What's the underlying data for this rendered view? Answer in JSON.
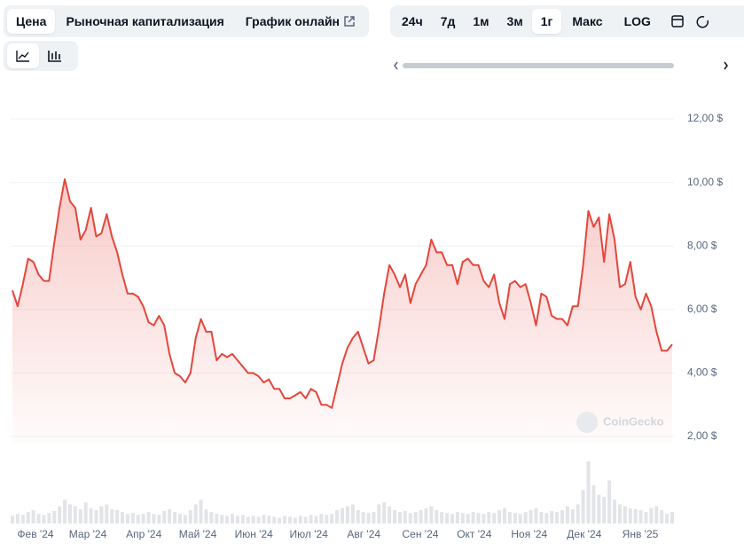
{
  "ui": {
    "tabs": [
      "Цена",
      "Рыночная капитализация",
      "График онлайн"
    ],
    "periods": [
      "24ч",
      "7д",
      "1м",
      "3м",
      "1г",
      "Макс",
      "LOG"
    ],
    "watermark": "CoinGecko"
  },
  "chart_data": {
    "type": "area",
    "color": "#e5463c",
    "values": [
      6.6,
      6.1,
      6.8,
      7.6,
      7.5,
      7.1,
      6.9,
      6.9,
      8.1,
      9.2,
      10.1,
      9.4,
      9.2,
      8.2,
      8.5,
      9.2,
      8.3,
      8.4,
      9.0,
      8.3,
      7.8,
      7.1,
      6.5,
      6.5,
      6.4,
      6.1,
      5.6,
      5.5,
      5.8,
      5.5,
      4.6,
      4.0,
      3.9,
      3.7,
      4.0,
      5.1,
      5.7,
      5.3,
      5.3,
      4.4,
      4.6,
      4.5,
      4.6,
      4.4,
      4.2,
      4.0,
      4.0,
      3.9,
      3.7,
      3.8,
      3.5,
      3.5,
      3.2,
      3.2,
      3.3,
      3.4,
      3.2,
      3.5,
      3.4,
      3.0,
      3.0,
      2.9,
      3.6,
      4.3,
      4.8,
      5.1,
      5.3,
      4.8,
      4.3,
      4.4,
      5.4,
      6.5,
      7.4,
      7.1,
      6.7,
      7.1,
      6.2,
      6.8,
      7.1,
      7.4,
      8.2,
      7.8,
      7.8,
      7.4,
      7.4,
      6.8,
      7.5,
      7.6,
      7.4,
      7.4,
      6.9,
      6.7,
      7.1,
      6.2,
      5.7,
      6.8,
      6.9,
      6.7,
      6.8,
      6.2,
      5.5,
      6.5,
      6.4,
      5.8,
      5.7,
      5.7,
      5.5,
      6.1,
      6.1,
      7.4,
      9.1,
      8.6,
      8.9,
      7.5,
      9.0,
      8.2,
      6.7,
      6.8,
      7.5,
      6.4,
      6.0,
      6.5,
      6.1,
      5.3,
      4.7,
      4.7,
      4.9
    ],
    "volume": [
      8,
      10,
      9,
      12,
      14,
      10,
      9,
      11,
      13,
      18,
      25,
      20,
      18,
      15,
      22,
      16,
      14,
      18,
      20,
      15,
      14,
      12,
      10,
      11,
      9,
      10,
      12,
      10,
      9,
      13,
      15,
      12,
      10,
      9,
      14,
      20,
      25,
      15,
      12,
      10,
      9,
      8,
      10,
      8,
      9,
      7,
      8,
      7,
      9,
      8,
      7,
      6,
      8,
      7,
      6,
      8,
      7,
      9,
      8,
      10,
      9,
      10,
      14,
      16,
      18,
      20,
      14,
      12,
      11,
      12,
      20,
      22,
      18,
      14,
      12,
      13,
      11,
      12,
      14,
      16,
      18,
      14,
      12,
      11,
      10,
      12,
      11,
      10,
      12,
      11,
      10,
      12,
      11,
      14,
      16,
      12,
      11,
      10,
      12,
      14,
      16,
      12,
      11,
      13,
      12,
      14,
      18,
      15,
      20,
      35,
      65,
      40,
      30,
      28,
      45,
      25,
      20,
      18,
      16,
      15,
      14,
      12,
      16,
      18,
      14,
      10,
      12
    ],
    "volume_color": "#e2e4e8",
    "ylim": [
      2,
      12
    ],
    "yticks": [
      {
        "value": 2,
        "label": "2,00 $"
      },
      {
        "value": 4,
        "label": "4,00 $"
      },
      {
        "value": 6,
        "label": "6,00 $"
      },
      {
        "value": 8,
        "label": "8,00 $"
      },
      {
        "value": 10,
        "label": "10,00 $"
      },
      {
        "value": 12,
        "label": "12,00 $"
      }
    ],
    "xticks": [
      {
        "value": 4.4,
        "label": "Фев '24"
      },
      {
        "value": 14.4,
        "label": "Мар '24"
      },
      {
        "value": 25.1,
        "label": "Апр '24"
      },
      {
        "value": 35.4,
        "label": "Май '24"
      },
      {
        "value": 46.1,
        "label": "Июн '24"
      },
      {
        "value": 56.6,
        "label": "Июл '24"
      },
      {
        "value": 67.1,
        "label": "Авг '24"
      },
      {
        "value": 77.9,
        "label": "Сен '24"
      },
      {
        "value": 88.2,
        "label": "Окт '24"
      },
      {
        "value": 98.7,
        "label": "Ноя '24"
      },
      {
        "value": 109.2,
        "label": "Дек '24"
      },
      {
        "value": 119.9,
        "label": "Янв '25"
      }
    ],
    "grid": true
  }
}
